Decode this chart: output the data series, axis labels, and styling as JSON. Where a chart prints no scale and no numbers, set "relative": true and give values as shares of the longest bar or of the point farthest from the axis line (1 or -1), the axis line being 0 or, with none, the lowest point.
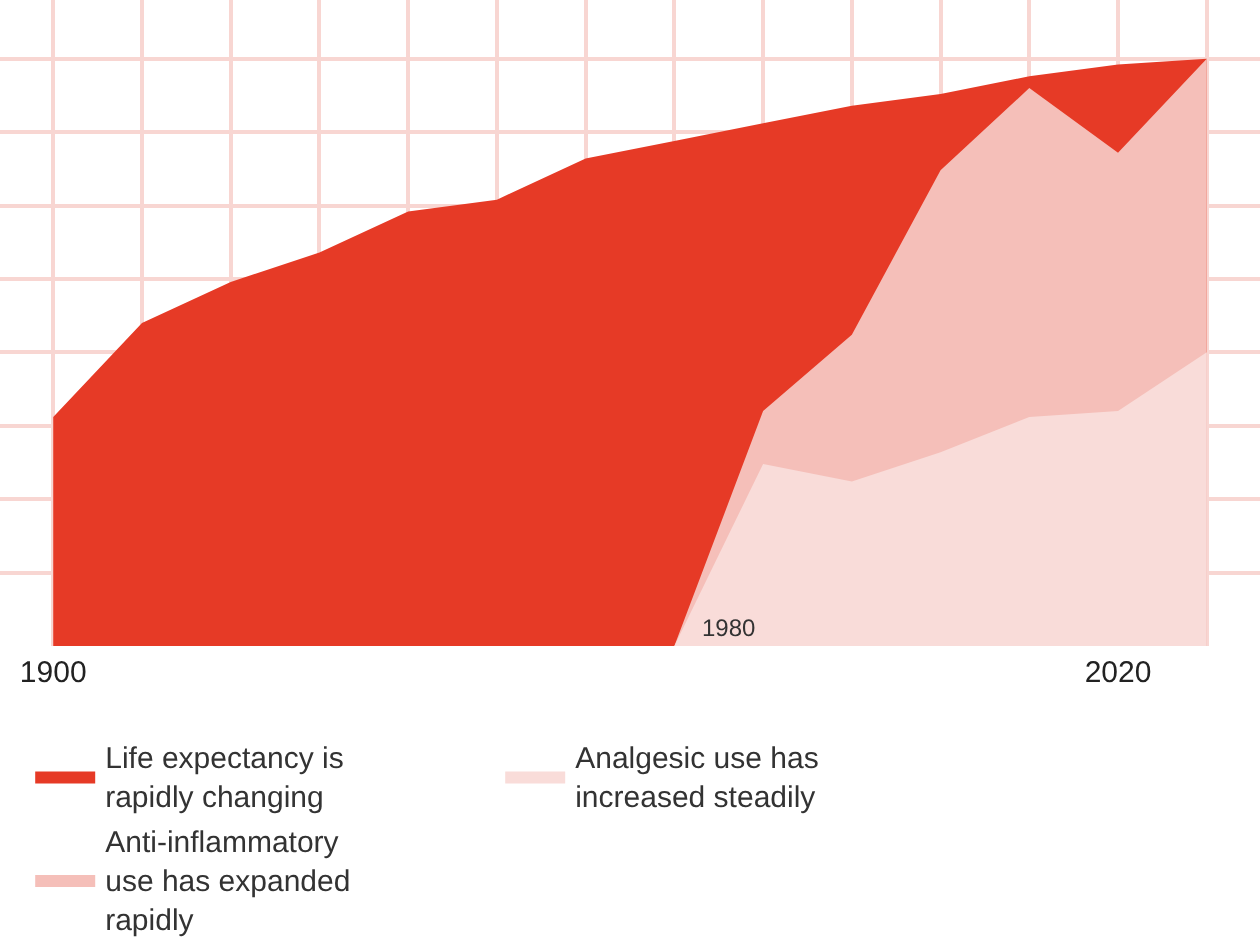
{
  "chart_data": {
    "type": "area",
    "relative": true,
    "x": [
      1900,
      1910,
      1920,
      1930,
      1940,
      1950,
      1960,
      1970,
      1980,
      1990,
      2000,
      2010,
      2020,
      2030
    ],
    "xlim": [
      1894,
      2036
    ],
    "xticks": [
      1900,
      2020
    ],
    "grid": true,
    "legend": "bottom",
    "annotations": [
      {
        "text": "1980",
        "x": 1980,
        "y": 0
      }
    ],
    "series": [
      {
        "name": "Life expectancy is rapidly changing",
        "color": "#e63a26",
        "values": [
          0.39,
          0.55,
          0.62,
          0.67,
          0.74,
          0.76,
          0.83,
          0.86,
          0.89,
          0.92,
          0.94,
          0.97,
          0.99,
          1.0
        ]
      },
      {
        "name": "Anti-inflammatory use has expanded rapidly",
        "color": "#f5bfb9",
        "values": [
          null,
          null,
          null,
          null,
          null,
          null,
          null,
          0,
          0.4,
          0.53,
          0.81,
          0.95,
          0.84,
          1.0
        ]
      },
      {
        "name": "Analgesic use has increased steadily",
        "color": "#f9dcd9",
        "values": [
          null,
          null,
          null,
          null,
          null,
          null,
          null,
          0,
          0.31,
          0.28,
          0.33,
          0.39,
          0.4,
          0.5
        ]
      }
    ]
  }
}
